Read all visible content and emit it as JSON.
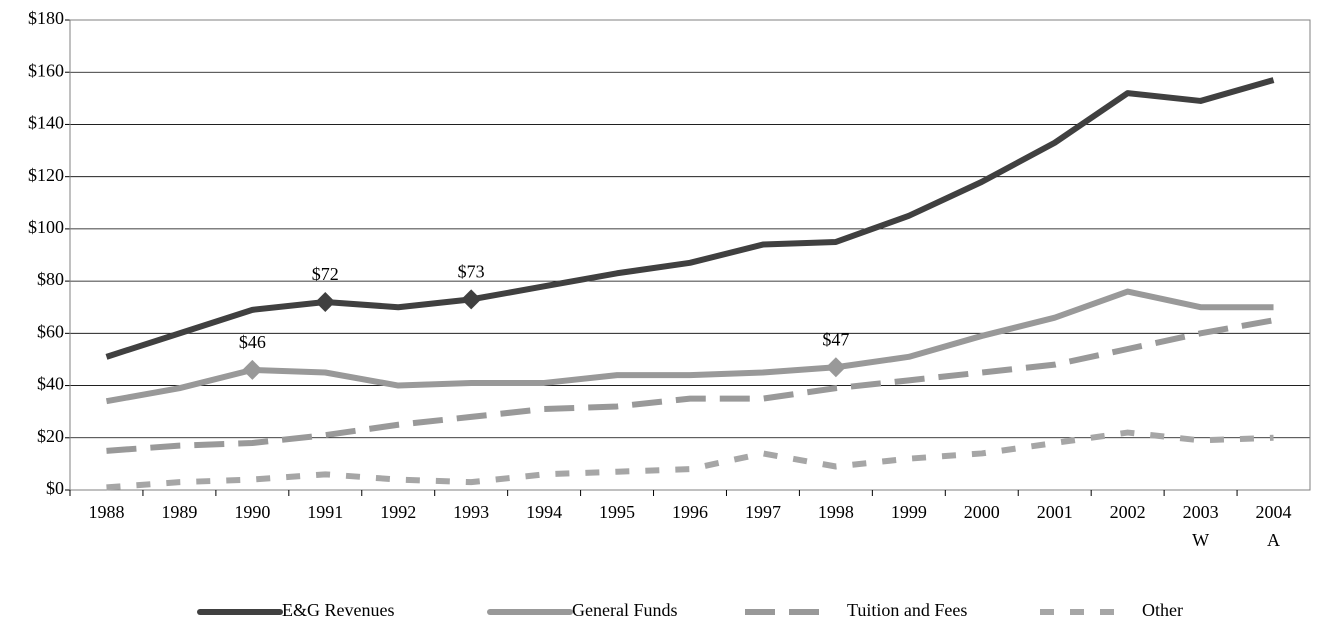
{
  "chart_data": {
    "type": "line",
    "categories": [
      "1988",
      "1989",
      "1990",
      "1991",
      "1992",
      "1993",
      "1994",
      "1995",
      "1996",
      "1997",
      "1998",
      "1999",
      "2000",
      "2001",
      "2002",
      "2003 W",
      "2004 A"
    ],
    "series": [
      {
        "name": "E&G Revenues",
        "color": "#404040",
        "style": "solid",
        "values": [
          51,
          60,
          69,
          72,
          70,
          73,
          78,
          83,
          87,
          94,
          95,
          105,
          118,
          133,
          152,
          149,
          157
        ],
        "value_labels": [
          null,
          null,
          null,
          "$72",
          null,
          "$73",
          null,
          null,
          null,
          null,
          null,
          null,
          null,
          null,
          null,
          null,
          null
        ]
      },
      {
        "name": "General Funds",
        "color": "#999999",
        "style": "solid",
        "values": [
          34,
          39,
          46,
          45,
          40,
          41,
          41,
          44,
          44,
          45,
          47,
          51,
          59,
          66,
          76,
          70,
          70
        ],
        "value_labels": [
          null,
          null,
          "$46",
          null,
          null,
          null,
          null,
          null,
          null,
          null,
          "$47",
          null,
          null,
          null,
          null,
          null,
          null
        ]
      },
      {
        "name": "Tuition and Fees",
        "color": "#999999",
        "style": "dashed",
        "values": [
          15,
          17,
          18,
          21,
          25,
          28,
          31,
          32,
          35,
          35,
          39,
          42,
          45,
          48,
          54,
          60,
          65
        ]
      },
      {
        "name": "Other",
        "color": "#a6a6a6",
        "style": "dotted",
        "values": [
          1,
          3,
          4,
          6,
          4,
          3,
          6,
          7,
          8,
          14,
          9,
          12,
          14,
          18,
          22,
          19,
          20
        ]
      }
    ],
    "ylim": [
      0,
      180
    ],
    "yticks": [
      {
        "value": 0,
        "label": "$0"
      },
      {
        "value": 20,
        "label": "$20"
      },
      {
        "value": 40,
        "label": "$40"
      },
      {
        "value": 60,
        "label": "$60"
      },
      {
        "value": 80,
        "label": "$80"
      },
      {
        "value": 100,
        "label": "$100"
      },
      {
        "value": 120,
        "label": "$120"
      },
      {
        "value": 140,
        "label": "$140"
      },
      {
        "value": 160,
        "label": "$160"
      },
      {
        "value": 180,
        "label": "$180"
      }
    ],
    "grid": true,
    "legend": "bottom"
  }
}
